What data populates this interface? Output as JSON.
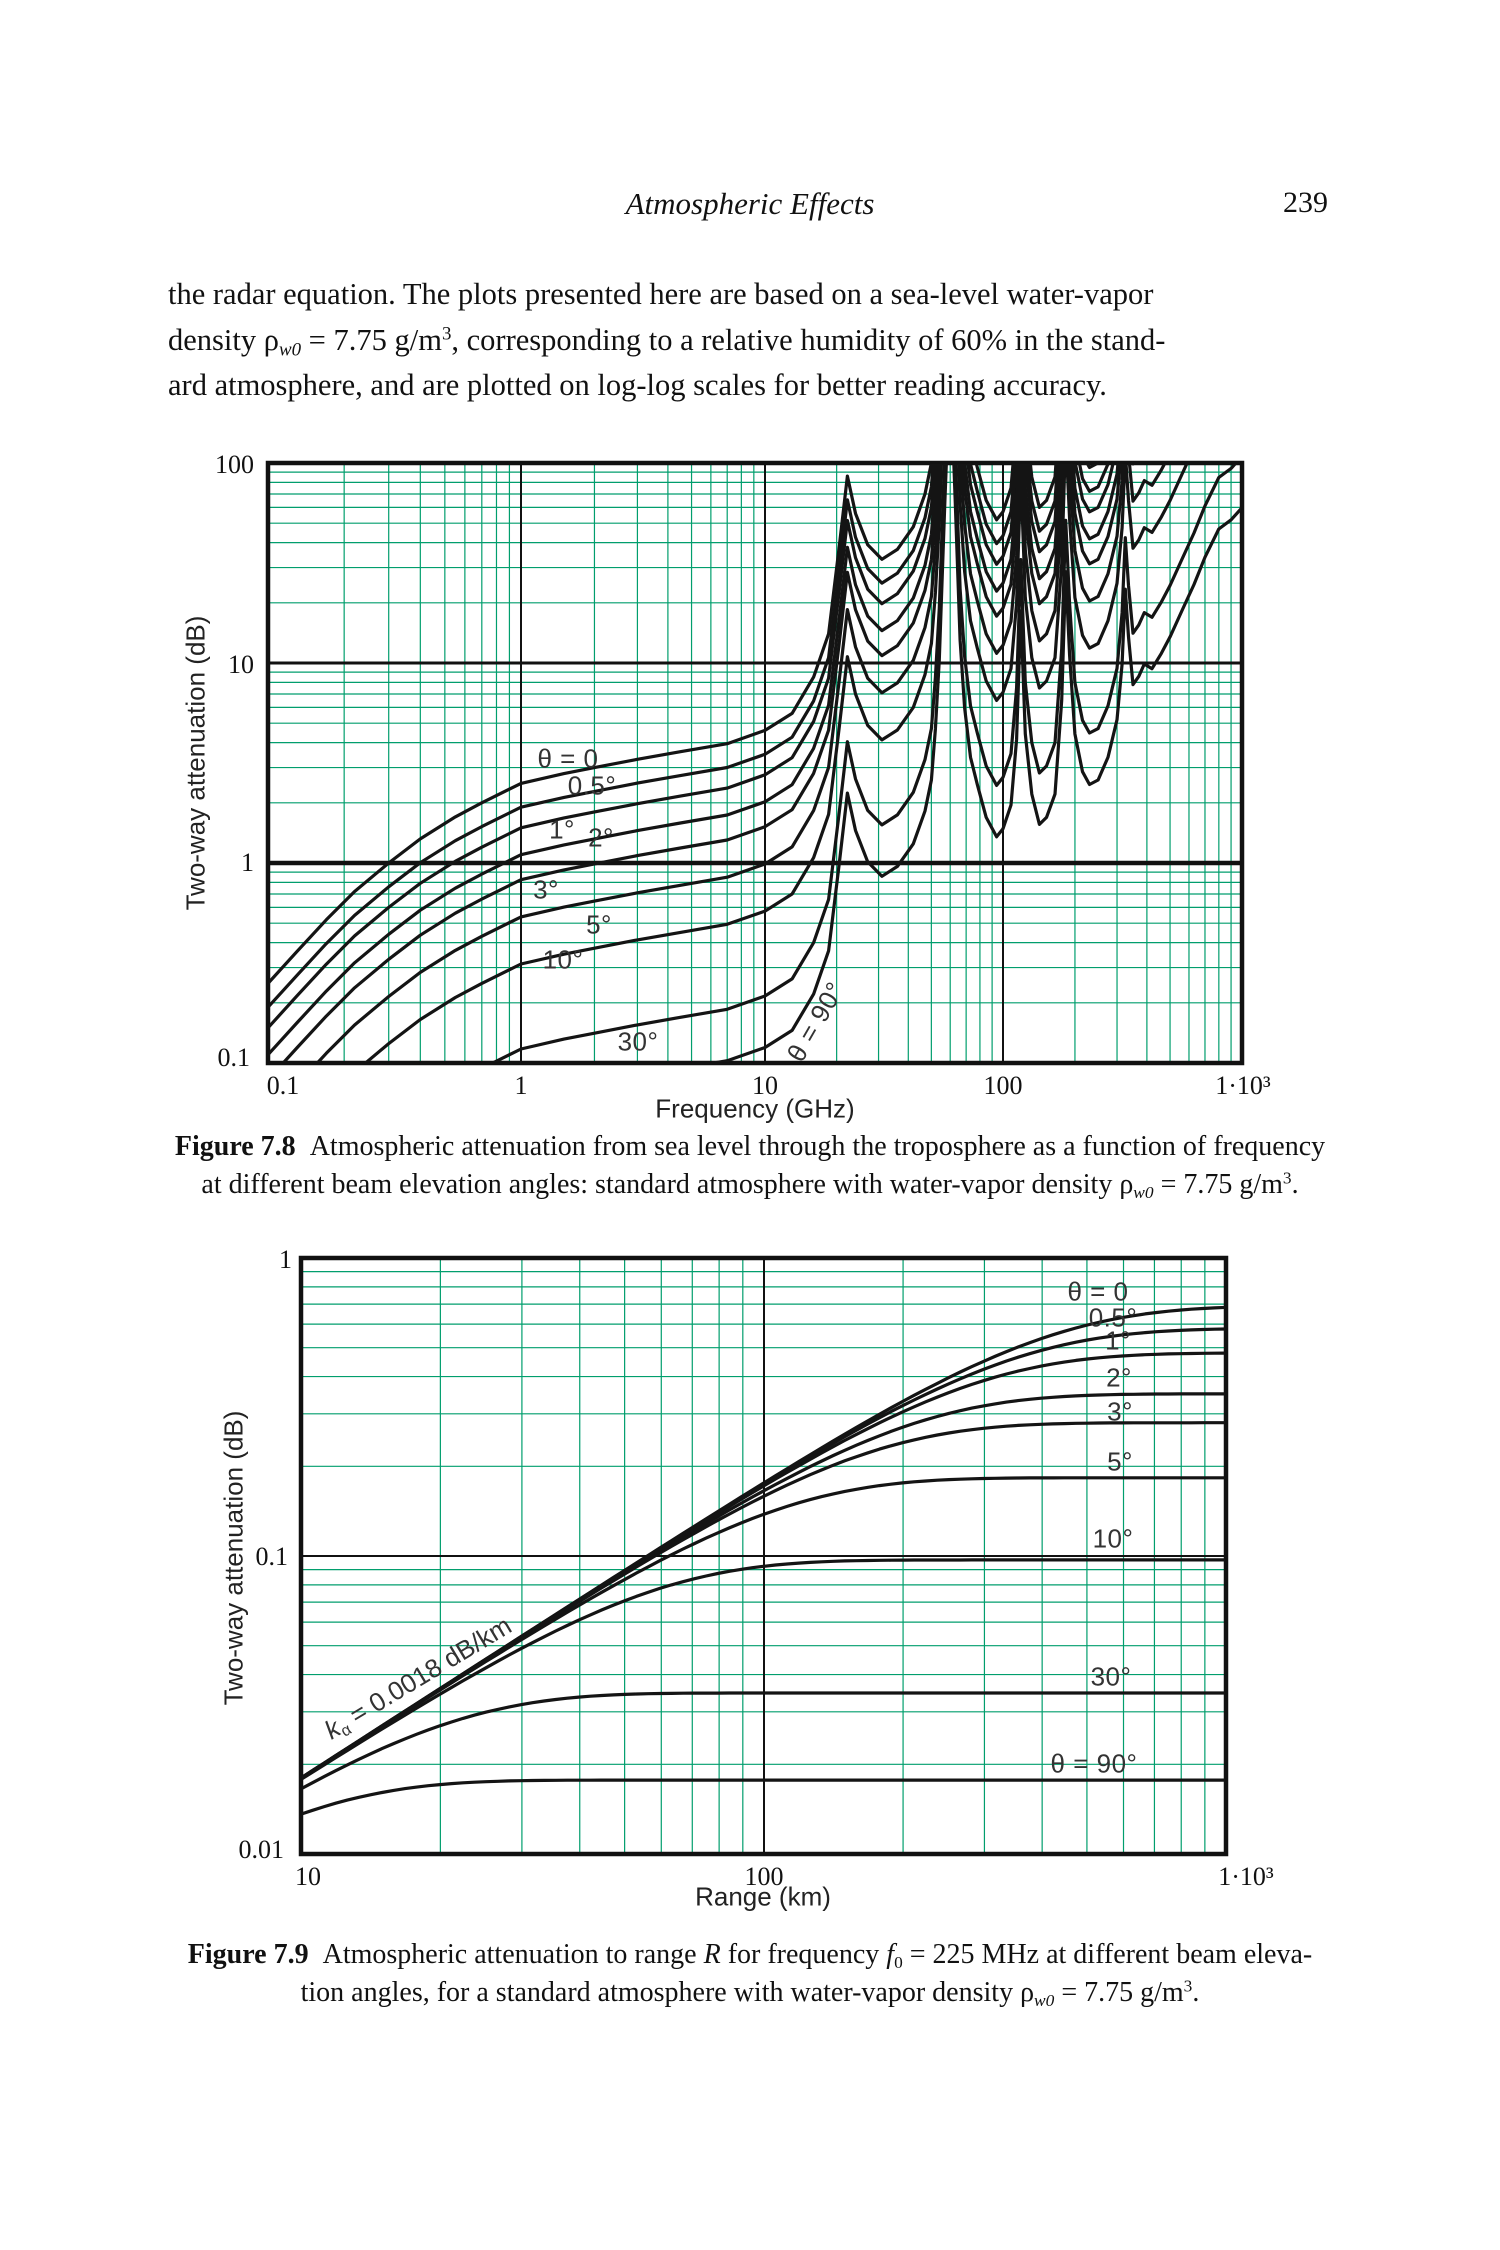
{
  "page": {
    "header_title": "Atmospheric Effects",
    "page_number": "239"
  },
  "paragraph": {
    "line1": "the radar equation. The plots presented here are based on a sea-level water-vapor",
    "line2_pre": "density ρ",
    "line2_sub": "w0",
    "line2_mid": " = 7.75 g/m",
    "line2_sup": "3",
    "line2_post": ", corresponding to a relative humidity of 60% in the stand-",
    "line3": "ard atmosphere, and are plotted on log-log scales for better reading accuracy."
  },
  "figure78": {
    "caption_label": "Figure 7.8",
    "caption_line1": "Atmospheric attenuation from sea level through the troposphere as a function of frequency",
    "caption2_pre": "at different beam elevation angles: standard atmosphere with water-vapor density ρ",
    "caption2_sub": "w0",
    "caption2_mid": " = 7.75 g/m",
    "caption2_sup": "3",
    "caption2_end": ".",
    "xlabel": "Frequency (GHz)",
    "ylabel": "Two-way attenuation (dB)",
    "x_ticks": [
      "0.1",
      "1",
      "10",
      "100",
      "1·10³"
    ],
    "y_ticks": [
      "100",
      "10",
      "1",
      "0.1"
    ],
    "chart_data": {
      "type": "line",
      "xscale": "log",
      "yscale": "log",
      "xlim": [
        0.1,
        1000
      ],
      "ylim": [
        0.1,
        100
      ],
      "xlabel": "Frequency (GHz)",
      "ylabel": "Two-way attenuation (dB)",
      "grid": "log minor grid (green) with black decade lines",
      "frequencies_ghz": [
        0.1,
        0.13,
        0.17,
        0.22,
        0.3,
        0.4,
        0.55,
        0.7,
        1,
        1.5,
        2,
        3,
        4.5,
        7,
        10,
        13,
        16,
        18.5,
        20.5,
        22.2,
        24,
        27,
        31,
        36,
        42,
        47,
        50,
        52,
        54,
        57,
        60,
        63,
        66,
        69,
        73,
        78,
        85,
        94,
        100,
        108,
        114,
        118.7,
        124,
        132,
        142,
        152,
        165,
        176,
        183,
        190,
        200,
        215,
        230,
        250,
        275,
        300,
        315,
        325,
        335,
        350,
        370,
        390,
        420,
        460,
        500,
        560,
        630,
        700,
        800,
        900,
        1000
      ],
      "base_attenuation_theta0_db": [
        0.25,
        0.36,
        0.52,
        0.72,
        1.0,
        1.32,
        1.7,
        2.0,
        2.5,
        2.8,
        3.0,
        3.3,
        3.6,
        3.95,
        4.6,
        5.6,
        8.5,
        14,
        38,
        86,
        56,
        39,
        33,
        37,
        48,
        70,
        100,
        180,
        400,
        2500,
        12000,
        2500,
        500,
        230,
        130,
        95,
        65,
        52,
        57,
        75,
        160,
        700,
        170,
        85,
        60,
        65,
        85,
        250,
        1100,
        420,
        170,
        110,
        95,
        100,
        130,
        200,
        380,
        900,
        520,
        300,
        330,
        380,
        360,
        430,
        520,
        700,
        950,
        1300,
        1800,
        2000,
        2300
      ],
      "series": [
        {
          "label": "θ = 0",
          "elevation_deg": 0,
          "scale": 1.0
        },
        {
          "label": "0.5°",
          "elevation_deg": 0.5,
          "scale": 0.76
        },
        {
          "label": "1°",
          "elevation_deg": 1,
          "scale": 0.6
        },
        {
          "label": "2°",
          "elevation_deg": 2,
          "scale": 0.44
        },
        {
          "label": "3°",
          "elevation_deg": 3,
          "scale": 0.33
        },
        {
          "label": "5°",
          "elevation_deg": 5,
          "scale": 0.215
        },
        {
          "label": "10°",
          "elevation_deg": 10,
          "scale": 0.125
        },
        {
          "label": "30°",
          "elevation_deg": 30,
          "scale": 0.047
        },
        {
          "label": "θ = 90°",
          "elevation_deg": 90,
          "scale": 0.026
        }
      ],
      "note": "attenuation of each series = base_attenuation_theta0_db × scale, clipped to ylim; absorption peaks at 22.2, 60, 118.7, 183 and 325 GHz"
    }
  },
  "figure79": {
    "caption_label": "Figure 7.9",
    "caption1_pre": "Atmospheric attenuation to range ",
    "caption1_R": "R",
    "caption1_mid": " for frequency ",
    "caption1_f": "f",
    "caption1_fsub": "0",
    "caption1_post": " = 225 MHz at different beam eleva-",
    "caption2_pre": "tion angles, for a standard atmosphere with water-vapor density ρ",
    "caption2_sub": "w0",
    "caption2_mid": " = 7.75 g/m",
    "caption2_sup": "3",
    "caption2_end": ".",
    "xlabel": "Range (km)",
    "ylabel": "Two-way attenuation (dB)",
    "x_ticks": [
      "10",
      "100",
      "1·10³"
    ],
    "y_ticks": [
      "1",
      "0.1",
      "0.01"
    ],
    "annotation": {
      "pre": "k",
      "sub": "α",
      "post": " = 0.0018 dB/km"
    },
    "chart_data": {
      "type": "line",
      "xscale": "log",
      "yscale": "log",
      "xlim": [
        10,
        1000
      ],
      "ylim": [
        0.01,
        1
      ],
      "xlabel": "Range (km)",
      "ylabel": "Two-way attenuation (dB)",
      "frequency_mhz": 225,
      "k_alpha_db_per_km": 0.0018,
      "model": "A(R) = plateau_db × tanh(k_alpha_db_per_km × R / plateau_db)",
      "series": [
        {
          "label": "θ = 0",
          "elevation_deg": 0,
          "plateau_db": 0.69
        },
        {
          "label": "0.5°",
          "elevation_deg": 0.5,
          "plateau_db": 0.58
        },
        {
          "label": "1°",
          "elevation_deg": 1,
          "plateau_db": 0.48
        },
        {
          "label": "2°",
          "elevation_deg": 2,
          "plateau_db": 0.35
        },
        {
          "label": "3°",
          "elevation_deg": 3,
          "plateau_db": 0.28
        },
        {
          "label": "5°",
          "elevation_deg": 5,
          "plateau_db": 0.183
        },
        {
          "label": "10°",
          "elevation_deg": 10,
          "plateau_db": 0.097
        },
        {
          "label": "30°",
          "elevation_deg": 30,
          "plateau_db": 0.0347
        },
        {
          "label": "θ = 90°",
          "elevation_deg": 90,
          "plateau_db": 0.0177
        }
      ]
    }
  },
  "colors": {
    "grid_green": "#019e6d",
    "axis_black": "#111111",
    "curve_black": "#141414",
    "label_gray": "#333333"
  }
}
